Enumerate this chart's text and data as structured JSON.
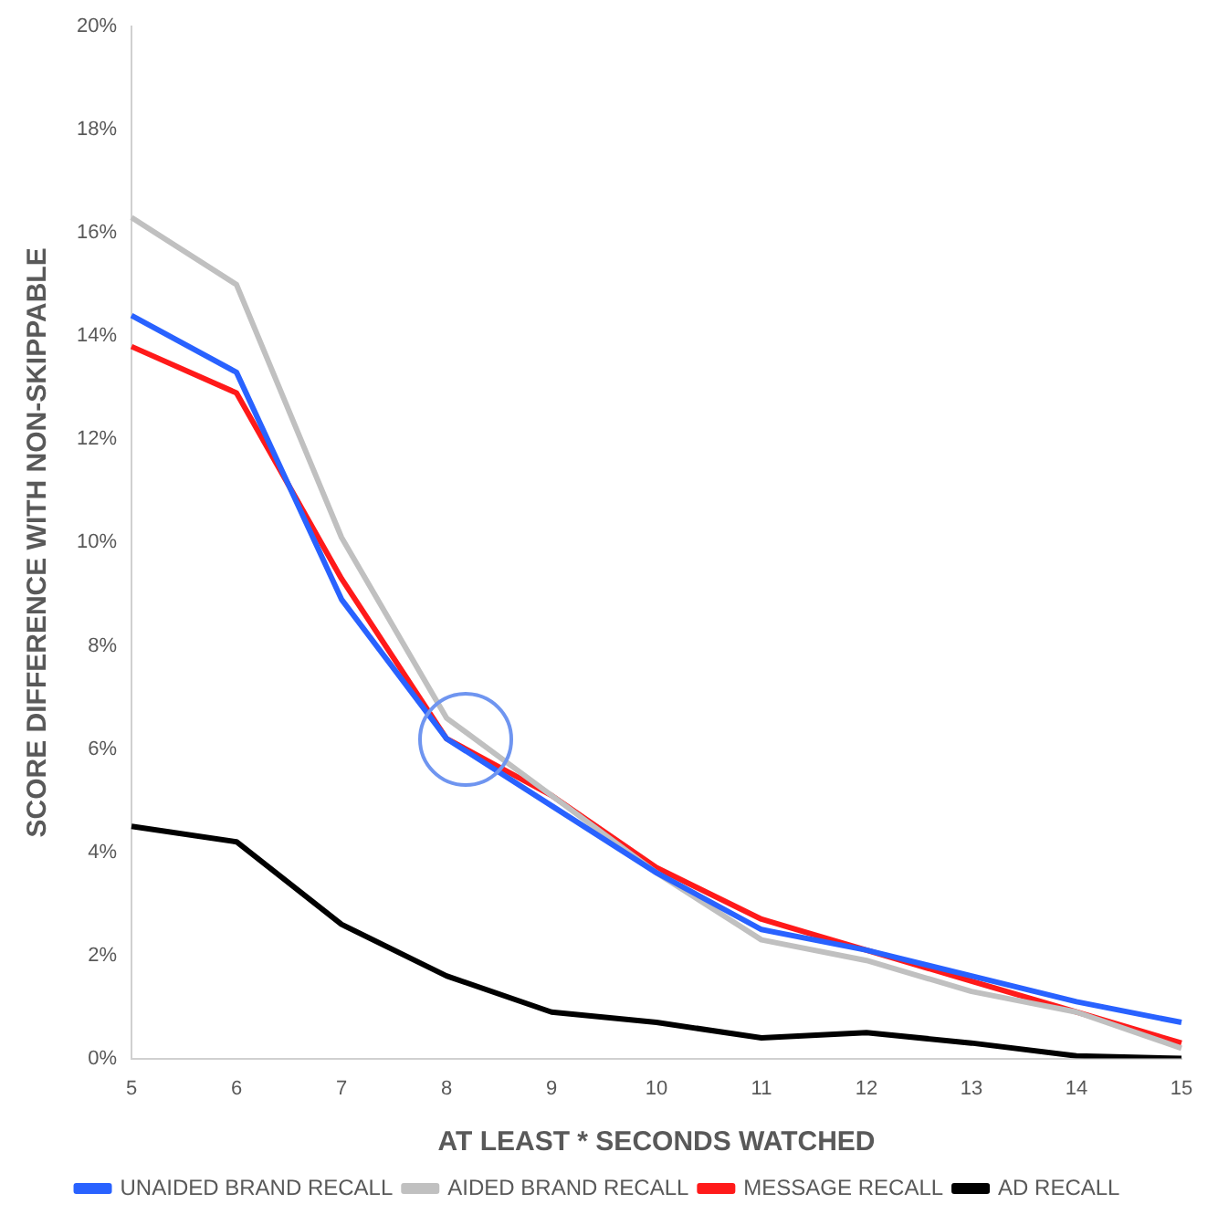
{
  "chart_data": {
    "type": "line",
    "xlabel": "AT LEAST * SECONDS WATCHED",
    "ylabel": "SCORE DIFFERENCE WITH NON-SKIPPABLE",
    "categories": [
      "5",
      "6",
      "7",
      "8",
      "9",
      "10",
      "11",
      "12",
      "13",
      "14",
      "15"
    ],
    "series": [
      {
        "name": "UNAIDED BRAND RECALL",
        "color": "#2962ff",
        "values": [
          14.4,
          13.3,
          8.9,
          6.2,
          4.9,
          3.6,
          2.5,
          2.1,
          1.6,
          1.1,
          0.7
        ]
      },
      {
        "name": "AIDED BRAND RECALL",
        "color": "#c0c0c0",
        "values": [
          16.3,
          15.0,
          10.1,
          6.6,
          5.1,
          3.6,
          2.3,
          1.9,
          1.3,
          0.9,
          0.2
        ]
      },
      {
        "name": "MESSAGE RECALL",
        "color": "#ff1a1a",
        "values": [
          13.8,
          12.9,
          9.3,
          6.2,
          5.1,
          3.7,
          2.7,
          2.1,
          1.5,
          0.9,
          0.3
        ]
      },
      {
        "name": "AD RECALL",
        "color": "#000000",
        "values": [
          4.5,
          4.2,
          2.6,
          1.6,
          0.9,
          0.7,
          0.4,
          0.5,
          0.3,
          0.05,
          0.0
        ]
      }
    ],
    "ylim": [
      0,
      20
    ],
    "yticks": [
      {
        "value": 0,
        "label": "0%"
      },
      {
        "value": 2,
        "label": "2%"
      },
      {
        "value": 4,
        "label": "4%"
      },
      {
        "value": 6,
        "label": "6%"
      },
      {
        "value": 8,
        "label": "8%"
      },
      {
        "value": 10,
        "label": "10%"
      },
      {
        "value": 12,
        "label": "12%"
      },
      {
        "value": 14,
        "label": "14%"
      },
      {
        "value": 16,
        "label": "16%"
      },
      {
        "value": 18,
        "label": "18%"
      },
      {
        "value": 20,
        "label": "20%"
      }
    ],
    "grid": false,
    "legend": "bottom",
    "marker": "none",
    "line_style": "solid"
  }
}
